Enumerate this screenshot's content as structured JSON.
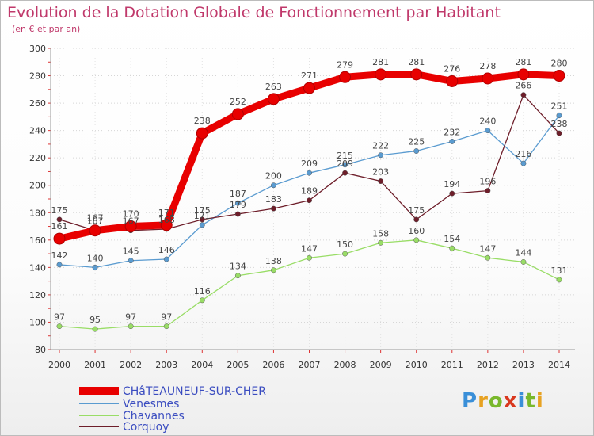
{
  "header": {
    "title": "Evolution de la Dotation Globale de Fonctionnement par Habitant",
    "subtitle": "(en € et par an)"
  },
  "logo": {
    "text": "Proxiti"
  },
  "chart_data": {
    "type": "line",
    "title": "Evolution de la Dotation Globale de Fonctionnement par Habitant",
    "subtitle": "(en € et par an)",
    "x": [
      2000,
      2001,
      2002,
      2003,
      2004,
      2005,
      2006,
      2007,
      2008,
      2009,
      2010,
      2011,
      2012,
      2013,
      2014
    ],
    "ylim": [
      80,
      300
    ],
    "yticks": [
      80,
      100,
      120,
      140,
      160,
      180,
      200,
      220,
      240,
      260,
      280,
      300
    ],
    "grid": true,
    "series": [
      {
        "name": "CHâTEAUNEUF-SUR-CHER",
        "color": "#e80000",
        "values": [
          161,
          167,
          170,
          171,
          238,
          252,
          263,
          271,
          279,
          281,
          281,
          276,
          278,
          281,
          280
        ]
      },
      {
        "name": "Venesmes",
        "color": "#5a9bd0",
        "values": [
          142,
          140,
          145,
          146,
          171,
          187,
          200,
          209,
          215,
          222,
          225,
          232,
          240,
          216,
          251
        ]
      },
      {
        "name": "Chavannes",
        "color": "#99dd66",
        "values": [
          97,
          95,
          97,
          97,
          116,
          134,
          138,
          147,
          150,
          158,
          160,
          154,
          147,
          144,
          131
        ]
      },
      {
        "name": "Corquoy",
        "color": "#6e1e2a",
        "values": [
          175,
          167,
          167,
          168,
          175,
          179,
          183,
          189,
          209,
          203,
          175,
          194,
          196,
          266,
          238
        ]
      }
    ]
  }
}
